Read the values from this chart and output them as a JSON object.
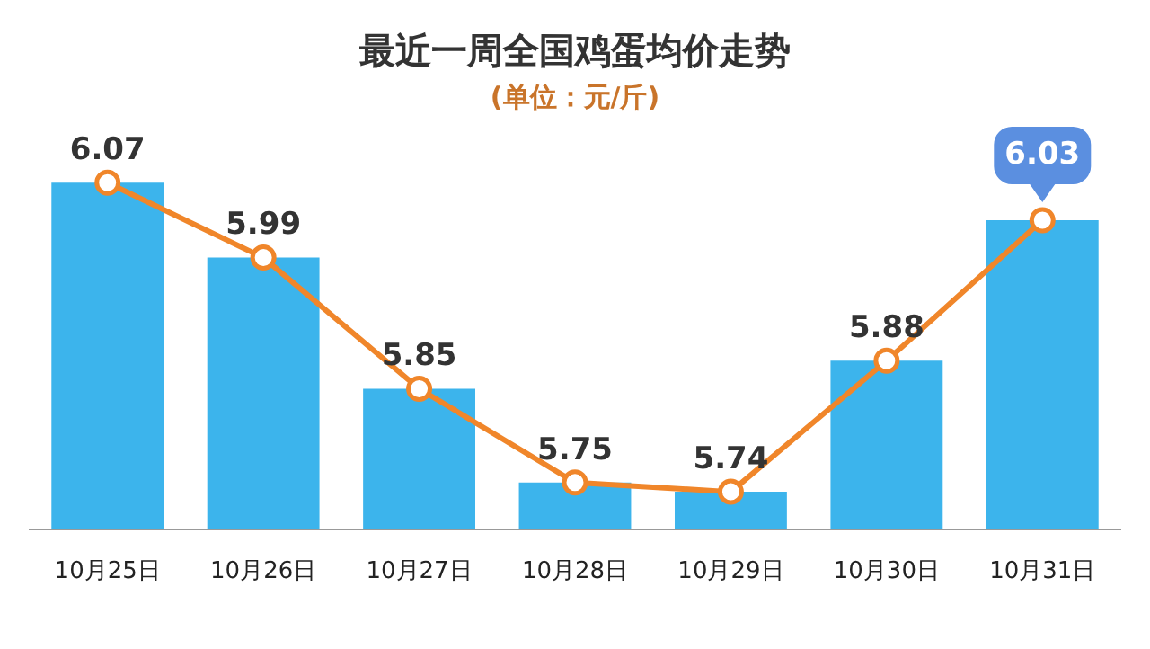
{
  "chart_data": {
    "type": "bar",
    "title": "最近一周全国鸡蛋均价走势",
    "subtitle": "(单位：元/斤)",
    "categories": [
      "10月25日",
      "10月26日",
      "10月27日",
      "10月28日",
      "10月29日",
      "10月30日",
      "10月31日"
    ],
    "series": [
      {
        "color": "#3cb4ec",
        "values": [
          6.07,
          5.99,
          5.85,
          5.75,
          5.74,
          5.88,
          6.03
        ],
        "value_labels": [
          "6.07",
          "5.99",
          "5.85",
          "5.75",
          "5.74",
          "5.88",
          "6.03"
        ]
      },
      {
        "type": "line",
        "color": "#f0862a",
        "marker": "circle",
        "values": [
          6.07,
          5.99,
          5.85,
          5.75,
          5.74,
          5.88,
          6.03
        ]
      }
    ],
    "tick_labels": "x",
    "grid": false,
    "legend": false
  }
}
